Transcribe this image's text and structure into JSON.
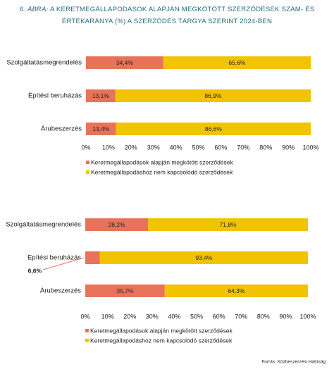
{
  "figure_label": "6. ÁBRA:",
  "title": "A KERETMEGÁLLAPODÁSOK ALAPJÁN MEGKÖTÖTT SZERZŐDÉSEK SZÁM- ÉS ÉRTÉKARÁNYA (%) A SZERZŐDÉS TÁRGYA SZERINT 2024-BEN",
  "source": "Forrás: Közbeszerzési Hatóság",
  "chart_data": [
    {
      "type": "stacked-barh",
      "categories": [
        "Szolgáltatásmegrendelés",
        "Építési beruházás",
        "Árubeszerzés"
      ],
      "series": [
        {
          "name": "Keretmegállapodások alapján megkötött szerződések",
          "color": "#e8735a",
          "values": [
            34.4,
            13.1,
            13.4
          ],
          "value_labels": [
            "34,4%",
            "13,1%",
            "13,4%"
          ]
        },
        {
          "name": "Keretmegállapodáshoz nem kapcsolódó szerződések",
          "color": "#f2c300",
          "values": [
            65.6,
            86.9,
            86.6
          ],
          "value_labels": [
            "65,6%",
            "86,9%",
            "86,6%"
          ]
        }
      ],
      "xlim": [
        0,
        100
      ],
      "xticks": [
        {
          "value": 0,
          "label": "0%"
        },
        {
          "value": 10,
          "label": "10%"
        },
        {
          "value": 20,
          "label": "20%"
        },
        {
          "value": 30,
          "label": "30%"
        },
        {
          "value": 40,
          "label": "40%"
        },
        {
          "value": 50,
          "label": "50%"
        },
        {
          "value": 60,
          "label": "60%"
        },
        {
          "value": 70,
          "label": "70%"
        },
        {
          "value": 80,
          "label": "80%"
        },
        {
          "value": 90,
          "label": "90%"
        },
        {
          "value": 100,
          "label": "100%"
        }
      ]
    },
    {
      "type": "stacked-barh",
      "categories": [
        "Szolgáltatásmegrendelés",
        "Építési beruházás",
        "Árubeszerzés"
      ],
      "series": [
        {
          "name": "Keretmegállapodások alapján megkötött szerződések",
          "color": "#e8735a",
          "values": [
            28.2,
            6.6,
            35.7
          ],
          "value_labels": [
            "28,2%",
            "6,6%",
            "35,7%"
          ]
        },
        {
          "name": "Keretmegállapodáshoz nem kapcsolódó szerződések",
          "color": "#f2c300",
          "values": [
            71.8,
            93.4,
            64.3
          ],
          "value_labels": [
            "71,8%",
            "93,4%",
            "64,3%"
          ]
        }
      ],
      "xlim": [
        0,
        100
      ],
      "xticks": [
        {
          "value": 0,
          "label": "0%"
        },
        {
          "value": 10,
          "label": "10%"
        },
        {
          "value": 20,
          "label": "20%"
        },
        {
          "value": 30,
          "label": "30%"
        },
        {
          "value": 40,
          "label": "40%"
        },
        {
          "value": 50,
          "label": "50%"
        },
        {
          "value": 60,
          "label": "60%"
        },
        {
          "value": 70,
          "label": "70%"
        },
        {
          "value": 80,
          "label": "80%"
        },
        {
          "value": 90,
          "label": "90%"
        },
        {
          "value": 100,
          "label": "100%"
        }
      ]
    }
  ]
}
